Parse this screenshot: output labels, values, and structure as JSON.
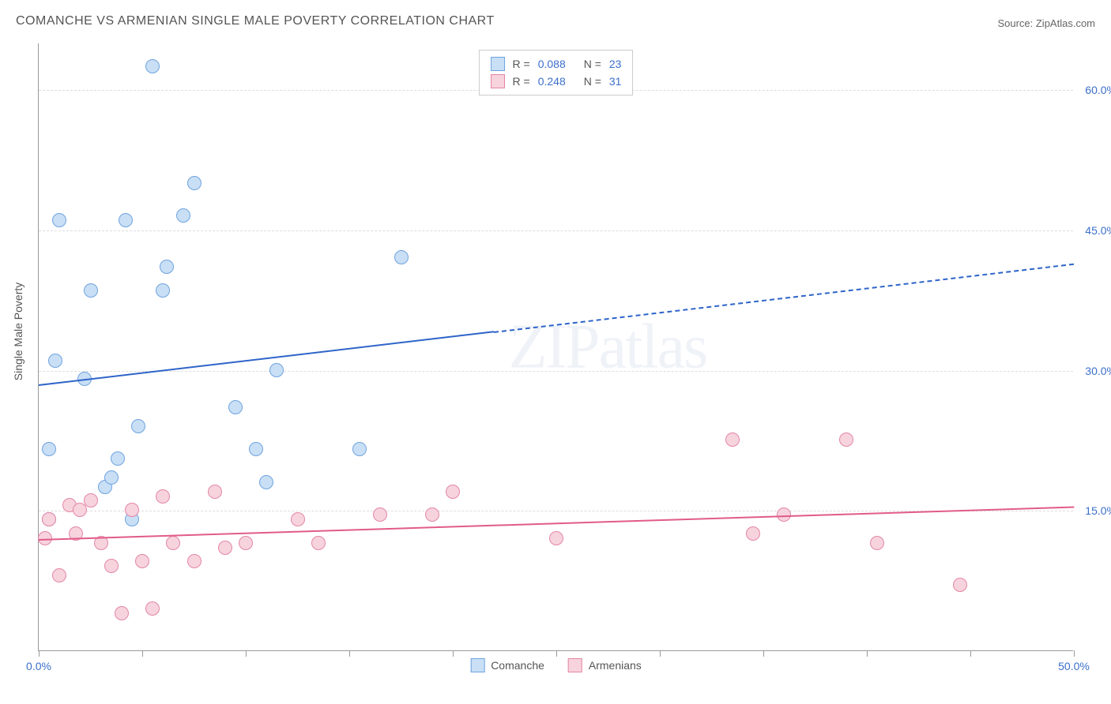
{
  "title": "COMANCHE VS ARMENIAN SINGLE MALE POVERTY CORRELATION CHART",
  "source": "Source: ZipAtlas.com",
  "y_axis_label": "Single Male Poverty",
  "watermark": "ZIPatlas",
  "chart": {
    "type": "scatter",
    "xlim": [
      0,
      50
    ],
    "ylim": [
      0,
      65
    ],
    "x_ticks": [
      0,
      5,
      10,
      15,
      20,
      25,
      30,
      35,
      40,
      45,
      50
    ],
    "x_tick_labels": {
      "0": "0.0%",
      "50": "50.0%"
    },
    "y_grid": [
      15,
      30,
      45,
      60
    ],
    "y_tick_labels": {
      "15": "15.0%",
      "30": "30.0%",
      "45": "45.0%",
      "60": "60.0%"
    },
    "background_color": "#ffffff",
    "grid_color": "#dddddd",
    "axis_color": "#999999",
    "tick_label_color": "#3b6fc9",
    "marker_size": 18,
    "series": [
      {
        "name": "Comanche",
        "fill": "#c9dff5",
        "stroke": "#6fa3e0",
        "R": "0.088",
        "N": "23",
        "trend": {
          "x0": 0,
          "y0": 28.5,
          "x1": 50,
          "y1": 41.5,
          "color": "#2e64c9",
          "dashed_after_x": 22
        },
        "points": [
          {
            "x": 0.5,
            "y": 14.0
          },
          {
            "x": 0.5,
            "y": 21.5
          },
          {
            "x": 0.8,
            "y": 31.0
          },
          {
            "x": 1.0,
            "y": 46.0
          },
          {
            "x": 2.2,
            "y": 29.0
          },
          {
            "x": 2.5,
            "y": 38.5
          },
          {
            "x": 3.2,
            "y": 17.5
          },
          {
            "x": 3.5,
            "y": 18.5
          },
          {
            "x": 3.8,
            "y": 20.5
          },
          {
            "x": 4.2,
            "y": 46.0
          },
          {
            "x": 4.5,
            "y": 14.0
          },
          {
            "x": 4.8,
            "y": 24.0
          },
          {
            "x": 5.5,
            "y": 62.5
          },
          {
            "x": 6.0,
            "y": 38.5
          },
          {
            "x": 6.2,
            "y": 41.0
          },
          {
            "x": 7.0,
            "y": 46.5
          },
          {
            "x": 7.5,
            "y": 50.0
          },
          {
            "x": 9.5,
            "y": 26.0
          },
          {
            "x": 10.5,
            "y": 21.5
          },
          {
            "x": 11.0,
            "y": 18.0
          },
          {
            "x": 11.5,
            "y": 30.0
          },
          {
            "x": 15.5,
            "y": 21.5
          },
          {
            "x": 17.5,
            "y": 42.0
          }
        ]
      },
      {
        "name": "Armenians",
        "fill": "#f7d3de",
        "stroke": "#e386a6",
        "R": "0.248",
        "N": "31",
        "trend": {
          "x0": 0,
          "y0": 12.0,
          "x1": 50,
          "y1": 15.5,
          "color": "#e15b8a",
          "dashed_after_x": 50
        },
        "points": [
          {
            "x": 0.3,
            "y": 12.0
          },
          {
            "x": 0.5,
            "y": 14.0
          },
          {
            "x": 1.0,
            "y": 8.0
          },
          {
            "x": 1.5,
            "y": 15.5
          },
          {
            "x": 1.8,
            "y": 12.5
          },
          {
            "x": 2.0,
            "y": 15.0
          },
          {
            "x": 2.5,
            "y": 16.0
          },
          {
            "x": 3.0,
            "y": 11.5
          },
          {
            "x": 3.5,
            "y": 9.0
          },
          {
            "x": 4.0,
            "y": 4.0
          },
          {
            "x": 4.5,
            "y": 15.0
          },
          {
            "x": 5.0,
            "y": 9.5
          },
          {
            "x": 5.5,
            "y": 4.5
          },
          {
            "x": 6.0,
            "y": 16.5
          },
          {
            "x": 6.5,
            "y": 11.5
          },
          {
            "x": 7.5,
            "y": 9.5
          },
          {
            "x": 8.5,
            "y": 17.0
          },
          {
            "x": 9.0,
            "y": 11.0
          },
          {
            "x": 10.0,
            "y": 11.5
          },
          {
            "x": 12.5,
            "y": 14.0
          },
          {
            "x": 13.5,
            "y": 11.5
          },
          {
            "x": 16.5,
            "y": 14.5
          },
          {
            "x": 19.0,
            "y": 14.5
          },
          {
            "x": 20.0,
            "y": 17.0
          },
          {
            "x": 25.0,
            "y": 12.0
          },
          {
            "x": 33.5,
            "y": 22.5
          },
          {
            "x": 34.5,
            "y": 12.5
          },
          {
            "x": 36.0,
            "y": 14.5
          },
          {
            "x": 39.0,
            "y": 22.5
          },
          {
            "x": 40.5,
            "y": 11.5
          },
          {
            "x": 44.5,
            "y": 7.0
          }
        ]
      }
    ]
  },
  "legend_top": {
    "r_label": "R =",
    "n_label": "N ="
  },
  "legend_bottom": [
    {
      "label": "Comanche"
    },
    {
      "label": "Armenians"
    }
  ]
}
